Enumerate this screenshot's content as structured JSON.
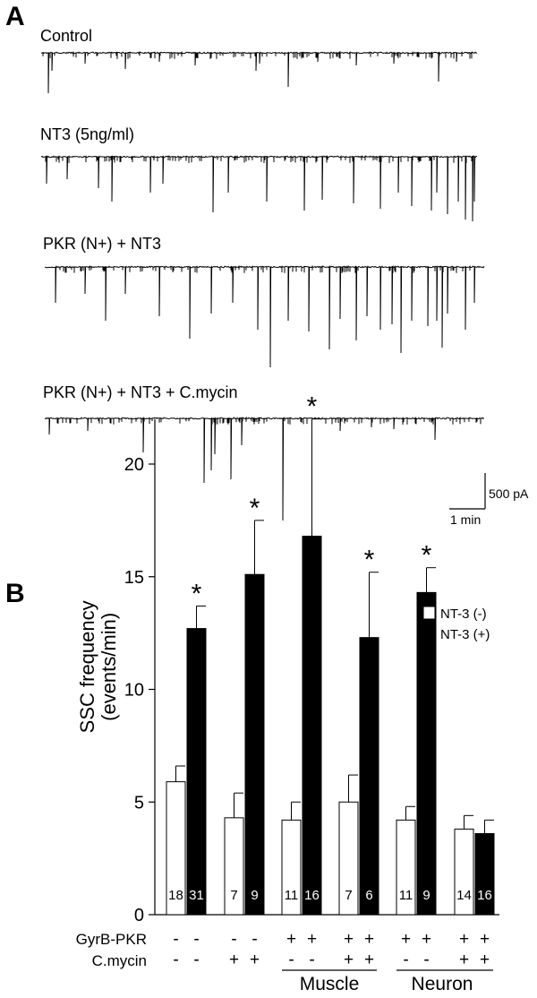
{
  "panel_a": {
    "letter": "A",
    "traces": [
      {
        "label": "Control"
      },
      {
        "label": "NT3 (5ng/ml)"
      },
      {
        "label": "PKR (N+) + NT3"
      },
      {
        "label": "PKR (N+) + NT3 + C.mycin"
      }
    ],
    "scale_bar": {
      "amplitude": "500 pA",
      "time": "1 min"
    }
  },
  "panel_b": {
    "letter": "B",
    "legend": {
      "empty": "NT-3 (-)",
      "filled": "NT-3 (+)"
    },
    "row_labels": {
      "gyrb": "GyrB-PKR",
      "cmycin": "C.mycin"
    },
    "group_labels": {
      "muscle": "Muscle",
      "neuron": "Neuron"
    },
    "significance": "*"
  },
  "chart_data": {
    "type": "bar",
    "ylabel": "SSC frequency\n(events/min)",
    "ylim": [
      0,
      22
    ],
    "yticks": [
      0,
      5,
      10,
      15,
      20
    ],
    "groups": [
      {
        "gyrb": "-",
        "cmycin": "-",
        "minus": {
          "value": 5.9,
          "err": 0.7,
          "n": "18"
        },
        "plus": {
          "value": 12.7,
          "err": 1.0,
          "n": "31",
          "sig": true
        }
      },
      {
        "gyrb": "-",
        "cmycin": "+",
        "minus": {
          "value": 4.3,
          "err": 1.1,
          "n": "7"
        },
        "plus": {
          "value": 15.1,
          "err": 2.4,
          "n": "9",
          "sig": true
        }
      },
      {
        "gyrb": "+",
        "cmycin": "-",
        "minus": {
          "value": 4.2,
          "err": 0.8,
          "n": "11"
        },
        "plus": {
          "value": 16.8,
          "err": 5.2,
          "n": "16",
          "sig": true
        }
      },
      {
        "gyrb": "+",
        "cmycin": "+",
        "minus": {
          "value": 5.0,
          "err": 1.2,
          "n": "7"
        },
        "plus": {
          "value": 12.3,
          "err": 2.9,
          "n": "6",
          "sig": true
        }
      },
      {
        "gyrb": "+",
        "cmycin": "-",
        "minus": {
          "value": 4.2,
          "err": 0.6,
          "n": "11"
        },
        "plus": {
          "value": 14.3,
          "err": 1.1,
          "n": "9",
          "sig": true
        }
      },
      {
        "gyrb": "+",
        "cmycin": "+",
        "minus": {
          "value": 3.8,
          "err": 0.6,
          "n": "14"
        },
        "plus": {
          "value": 3.6,
          "err": 0.6,
          "n": "16",
          "sig": false
        }
      }
    ],
    "colors": {
      "minus": "#ffffff",
      "plus": "#000000"
    }
  }
}
